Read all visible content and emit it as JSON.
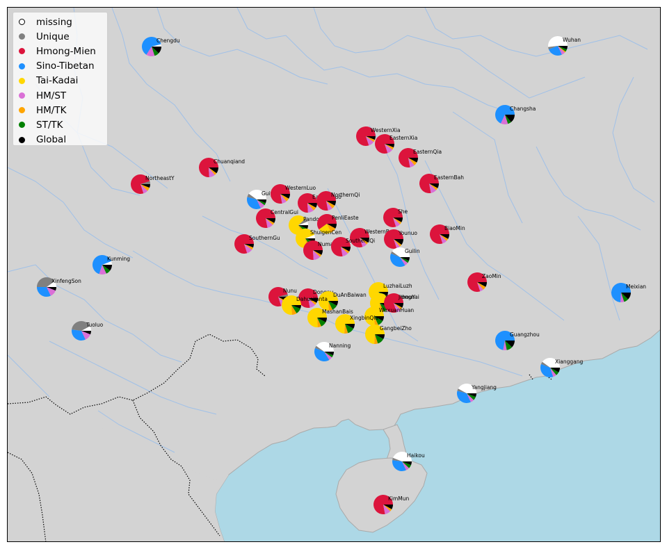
{
  "legend": {
    "items": [
      {
        "label": "missing",
        "color": "#ffffff",
        "hollow": true
      },
      {
        "label": "Unique",
        "color": "#808080"
      },
      {
        "label": "Hmong-Mien",
        "color": "#dc143c"
      },
      {
        "label": "Sino-Tibetan",
        "color": "#1e90ff"
      },
      {
        "label": "Tai-Kadai",
        "color": "#ffd700"
      },
      {
        "label": "HM/ST",
        "color": "#da70d6"
      },
      {
        "label": "HM/TK",
        "color": "#ffa500"
      },
      {
        "label": "ST/TK",
        "color": "#008000"
      },
      {
        "label": "Global",
        "color": "#000000"
      }
    ]
  },
  "colors": {
    "land": "#d3d3d3",
    "sea": "#add8e6",
    "river": "#9fc0e8",
    "coast": "#a9a9a9",
    "border": "#000000"
  },
  "sites": [
    {
      "name": "Chengdu",
      "fr": [
        0.04,
        0,
        0,
        0.62,
        0,
        0.14,
        0,
        0.08,
        0.12
      ]
    },
    {
      "name": "Wuhan",
      "fr": [
        0.52,
        0.04,
        0,
        0.26,
        0,
        0.06,
        0.02,
        0.04,
        0.06
      ]
    },
    {
      "name": "Changsha",
      "fr": [
        0,
        0,
        0,
        0.68,
        0,
        0.12,
        0,
        0.06,
        0.14
      ]
    },
    {
      "name": "WesternXia",
      "fr": [
        0,
        0,
        0.8,
        0,
        0,
        0.1,
        0.04,
        0,
        0.06
      ]
    },
    {
      "name": "EasternXia",
      "fr": [
        0,
        0,
        0.8,
        0,
        0,
        0.1,
        0.04,
        0,
        0.06
      ]
    },
    {
      "name": "EasternQia",
      "fr": [
        0,
        0,
        0.78,
        0,
        0,
        0.08,
        0.06,
        0,
        0.08
      ]
    },
    {
      "name": "Chuanqiand",
      "fr": [
        0,
        0,
        0.76,
        0,
        0,
        0.1,
        0.04,
        0,
        0.1
      ]
    },
    {
      "name": "NortheastY",
      "fr": [
        0,
        0.05,
        0.75,
        0,
        0,
        0.08,
        0.06,
        0,
        0.06
      ]
    },
    {
      "name": "EasternBah",
      "fr": [
        0,
        0,
        0.78,
        0,
        0,
        0.1,
        0.04,
        0,
        0.08
      ]
    },
    {
      "name": "Guiyang",
      "fr": [
        0.4,
        0.06,
        0,
        0.36,
        0,
        0.08,
        0,
        0.04,
        0.06
      ]
    },
    {
      "name": "WesternLuo",
      "fr": [
        0,
        0,
        0.78,
        0,
        0,
        0.08,
        0.06,
        0,
        0.08
      ]
    },
    {
      "name": "EasternLuo",
      "fr": [
        0,
        0,
        0.76,
        0,
        0,
        0.1,
        0.06,
        0,
        0.08
      ]
    },
    {
      "name": "NorthernQi",
      "fr": [
        0,
        0,
        0.78,
        0,
        0,
        0.08,
        0.06,
        0,
        0.08
      ]
    },
    {
      "name": "CentralGui",
      "fr": [
        0,
        0,
        0.78,
        0,
        0,
        0.1,
        0.04,
        0,
        0.08
      ]
    },
    {
      "name": "Pandong",
      "fr": [
        0.06,
        0.06,
        0,
        0,
        0.7,
        0,
        0.06,
        0.06,
        0.06
      ]
    },
    {
      "name": "PenliEaste",
      "fr": [
        0,
        0,
        0.6,
        0,
        0.22,
        0,
        0.1,
        0,
        0.08
      ]
    },
    {
      "name": "She",
      "fr": [
        0,
        0,
        0.8,
        0,
        0,
        0.08,
        0.04,
        0,
        0.08
      ]
    },
    {
      "name": "ShuigenCen",
      "fr": [
        0.06,
        0,
        0,
        0,
        0.72,
        0,
        0.06,
        0.1,
        0.06
      ]
    },
    {
      "name": "WesternBah",
      "fr": [
        0,
        0,
        0.8,
        0,
        0,
        0.08,
        0.04,
        0,
        0.08
      ]
    },
    {
      "name": "Younuo",
      "fr": [
        0,
        0,
        0.8,
        0,
        0,
        0.06,
        0.04,
        0,
        0.1
      ]
    },
    {
      "name": "BiaoMin",
      "fr": [
        0,
        0,
        0.8,
        0,
        0,
        0.08,
        0.04,
        0,
        0.08
      ]
    },
    {
      "name": "SouthernGu",
      "fr": [
        0,
        0,
        0.8,
        0,
        0,
        0.1,
        0.04,
        0,
        0.06
      ]
    },
    {
      "name": "Numao",
      "fr": [
        0,
        0,
        0.76,
        0,
        0,
        0.12,
        0.04,
        0,
        0.08
      ]
    },
    {
      "name": "SouthernQi",
      "fr": [
        0,
        0,
        0.78,
        0,
        0,
        0.1,
        0.04,
        0,
        0.08
      ]
    },
    {
      "name": "Guilin",
      "fr": [
        0.4,
        0.04,
        0,
        0.4,
        0,
        0.06,
        0,
        0.04,
        0.06
      ]
    },
    {
      "name": "Kunming",
      "fr": [
        0.06,
        0,
        0,
        0.64,
        0,
        0.12,
        0,
        0.08,
        0.1
      ]
    },
    {
      "name": "XinfengSon",
      "fr": [
        0.1,
        0.4,
        0,
        0.32,
        0,
        0.12,
        0,
        0,
        0.06
      ]
    },
    {
      "name": "ZaoMin",
      "fr": [
        0,
        0,
        0.8,
        0,
        0,
        0.06,
        0.06,
        0,
        0.08
      ]
    },
    {
      "name": "Meixian",
      "fr": [
        0,
        0,
        0,
        0.74,
        0,
        0.06,
        0,
        0.08,
        0.12
      ]
    },
    {
      "name": "LuzhaiLuzh",
      "fr": [
        0,
        0,
        0,
        0,
        0.84,
        0,
        0.04,
        0.06,
        0.06
      ]
    },
    {
      "name": "Nunu",
      "fr": [
        0,
        0.04,
        0.76,
        0,
        0,
        0.08,
        0.04,
        0,
        0.08
      ]
    },
    {
      "name": "Dongnu",
      "fr": [
        0,
        0,
        0.78,
        0,
        0,
        0.1,
        0.04,
        0,
        0.08
      ]
    },
    {
      "name": "DuAnBaiwan",
      "fr": [
        0,
        0,
        0,
        0,
        0.76,
        0,
        0.06,
        0.1,
        0.08
      ]
    },
    {
      "name": "XiangzhouY",
      "fr": [
        0,
        0,
        0,
        0,
        0.76,
        0,
        0.06,
        0.1,
        0.08
      ]
    },
    {
      "name": "Jiongnai",
      "fr": [
        0,
        0,
        0.8,
        0,
        0,
        0.08,
        0.04,
        0,
        0.08
      ]
    },
    {
      "name": "DahuaYanta",
      "fr": [
        0,
        0,
        0,
        0,
        0.76,
        0,
        0.08,
        0.1,
        0.06
      ]
    },
    {
      "name": "WuxuanHuan",
      "fr": [
        0,
        0,
        0,
        0,
        0.76,
        0,
        0.06,
        0.1,
        0.08
      ]
    },
    {
      "name": "MashanBais",
      "fr": [
        0,
        0,
        0,
        0,
        0.76,
        0,
        0.06,
        0.1,
        0.08
      ]
    },
    {
      "name": "XingbinQia",
      "fr": [
        0,
        0,
        0,
        0,
        0.74,
        0,
        0.06,
        0.12,
        0.08
      ]
    },
    {
      "name": "GangbeiZho",
      "fr": [
        0,
        0,
        0,
        0,
        0.74,
        0,
        0.06,
        0.12,
        0.08
      ]
    },
    {
      "name": "Tuoluo",
      "fr": [
        0.08,
        0.4,
        0,
        0.34,
        0,
        0.12,
        0,
        0,
        0.06
      ]
    },
    {
      "name": "Guangzhou",
      "fr": [
        0,
        0,
        0,
        0.72,
        0,
        0.06,
        0,
        0.1,
        0.12
      ]
    },
    {
      "name": "Nanning",
      "fr": [
        0.4,
        0.04,
        0,
        0.4,
        0,
        0.06,
        0,
        0.04,
        0.06
      ]
    },
    {
      "name": "Xianggang",
      "fr": [
        0.4,
        0.04,
        0,
        0.36,
        0,
        0.06,
        0,
        0.06,
        0.08
      ]
    },
    {
      "name": "Yangjiang",
      "fr": [
        0.42,
        0.04,
        0,
        0.36,
        0,
        0.06,
        0,
        0.06,
        0.06
      ]
    },
    {
      "name": "Haikou",
      "fr": [
        0.44,
        0.04,
        0,
        0.34,
        0,
        0.06,
        0,
        0.06,
        0.06
      ]
    },
    {
      "name": "KimMun",
      "fr": [
        0,
        0,
        0.78,
        0,
        0,
        0.1,
        0.04,
        0,
        0.08
      ]
    }
  ]
}
